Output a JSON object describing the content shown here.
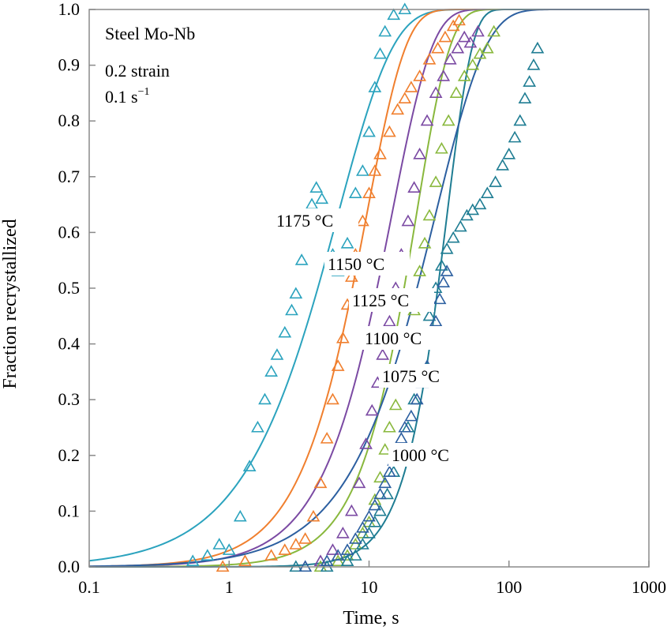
{
  "chart_data": {
    "type": "scatter",
    "title": "",
    "xlabel": "Time, s",
    "ylabel": "Fraction recrystallized",
    "xscale": "log",
    "xlim": [
      0.1,
      1000
    ],
    "ylim": [
      0.0,
      1.0
    ],
    "grid": false,
    "x_ticks": [
      0.1,
      1,
      10,
      100,
      1000
    ],
    "x_tick_labels": [
      "0.1",
      "1",
      "10",
      "100",
      "1000"
    ],
    "y_ticks": [
      0.0,
      0.1,
      0.2,
      0.3,
      0.4,
      0.5,
      0.6,
      0.7,
      0.8,
      0.9,
      1.0
    ],
    "y_tick_labels": [
      "0.0",
      "0.1",
      "0.2",
      "0.3",
      "0.4",
      "0.5",
      "0.6",
      "0.7",
      "0.8",
      "0.9",
      "1.0"
    ],
    "annotations": [
      "Steel Mo-Nb",
      "0.2 strain",
      "0.1 s"
    ],
    "annotation_superscript": "−1",
    "series": [
      {
        "name": "1175 °C",
        "color": "#2ba3be",
        "t50": 4.3,
        "n": 1.1,
        "points": [
          [
            0.55,
            0.01
          ],
          [
            0.7,
            0.02
          ],
          [
            0.85,
            0.04
          ],
          [
            1.0,
            0.03
          ],
          [
            1.2,
            0.09
          ],
          [
            1.4,
            0.18
          ],
          [
            1.6,
            0.25
          ],
          [
            1.8,
            0.3
          ],
          [
            2.0,
            0.35
          ],
          [
            2.2,
            0.38
          ],
          [
            2.5,
            0.42
          ],
          [
            2.8,
            0.46
          ],
          [
            3.0,
            0.49
          ],
          [
            3.3,
            0.55
          ],
          [
            3.6,
            0.61
          ],
          [
            3.9,
            0.65
          ],
          [
            4.2,
            0.68
          ],
          [
            4.6,
            0.66
          ],
          [
            5.0,
            0.61
          ],
          [
            5.5,
            0.56
          ],
          [
            6.0,
            0.53
          ],
          [
            7.0,
            0.58
          ],
          [
            8.0,
            0.67
          ],
          [
            9.0,
            0.71
          ],
          [
            10.0,
            0.78
          ],
          [
            11.0,
            0.86
          ],
          [
            12.0,
            0.92
          ],
          [
            13.0,
            0.96
          ],
          [
            15.0,
            0.99
          ],
          [
            18.0,
            1.0
          ]
        ]
      },
      {
        "name": "1150 °C",
        "color": "#f07f2e",
        "t50": 7.6,
        "n": 1.55,
        "points": [
          [
            0.9,
            0.0
          ],
          [
            1.3,
            0.01
          ],
          [
            2.0,
            0.02
          ],
          [
            2.5,
            0.03
          ],
          [
            3.0,
            0.04
          ],
          [
            3.5,
            0.05
          ],
          [
            4.0,
            0.09
          ],
          [
            4.5,
            0.15
          ],
          [
            5.0,
            0.23
          ],
          [
            5.5,
            0.3
          ],
          [
            6.0,
            0.36
          ],
          [
            6.5,
            0.41
          ],
          [
            7.0,
            0.47
          ],
          [
            7.5,
            0.52
          ],
          [
            8.0,
            0.56
          ],
          [
            9.0,
            0.62
          ],
          [
            10.0,
            0.67
          ],
          [
            11.0,
            0.71
          ],
          [
            12.0,
            0.74
          ],
          [
            14.0,
            0.78
          ],
          [
            16.0,
            0.82
          ],
          [
            18.0,
            0.84
          ],
          [
            20.0,
            0.86
          ],
          [
            23.0,
            0.88
          ],
          [
            27.0,
            0.91
          ],
          [
            31.0,
            0.93
          ],
          [
            35.0,
            0.95
          ],
          [
            40.0,
            0.97
          ],
          [
            44.0,
            0.98
          ]
        ]
      },
      {
        "name": "1125 °C",
        "color": "#7b4aa3",
        "t50": 11.4,
        "n": 1.5,
        "points": [
          [
            3.5,
            0.0
          ],
          [
            4.5,
            0.01
          ],
          [
            5.5,
            0.03
          ],
          [
            6.5,
            0.06
          ],
          [
            7.5,
            0.1
          ],
          [
            8.5,
            0.15
          ],
          [
            9.5,
            0.22
          ],
          [
            10.5,
            0.28
          ],
          [
            11.5,
            0.33
          ],
          [
            12.5,
            0.38
          ],
          [
            14.0,
            0.44
          ],
          [
            15.5,
            0.5
          ],
          [
            17.0,
            0.56
          ],
          [
            19.0,
            0.62
          ],
          [
            21.0,
            0.68
          ],
          [
            23.0,
            0.74
          ],
          [
            26.0,
            0.8
          ],
          [
            30.0,
            0.85
          ],
          [
            34.0,
            0.88
          ],
          [
            38.0,
            0.91
          ],
          [
            43.0,
            0.93
          ],
          [
            48.0,
            0.95
          ],
          [
            53.0,
            0.94
          ],
          [
            60.0,
            0.96
          ]
        ]
      },
      {
        "name": "1100 °C",
        "color": "#89b83d",
        "t50": 17.8,
        "n": 1.8,
        "points": [
          [
            4.5,
            0.0
          ],
          [
            6.0,
            0.01
          ],
          [
            7.0,
            0.02
          ],
          [
            8.0,
            0.04
          ],
          [
            9.0,
            0.06
          ],
          [
            10.0,
            0.08
          ],
          [
            11.0,
            0.12
          ],
          [
            12.0,
            0.16
          ],
          [
            13.0,
            0.21
          ],
          [
            14.0,
            0.25
          ],
          [
            15.5,
            0.29
          ],
          [
            17.0,
            0.34
          ],
          [
            19.0,
            0.4
          ],
          [
            21.0,
            0.46
          ],
          [
            23.0,
            0.53
          ],
          [
            25.0,
            0.58
          ],
          [
            27.0,
            0.63
          ],
          [
            30.0,
            0.69
          ],
          [
            33.0,
            0.75
          ],
          [
            37.0,
            0.8
          ],
          [
            42.0,
            0.85
          ],
          [
            48.0,
            0.88
          ],
          [
            55.0,
            0.9
          ],
          [
            62.0,
            0.92
          ],
          [
            70.0,
            0.93
          ],
          [
            78.0,
            0.96
          ]
        ]
      },
      {
        "name": "1075 °C",
        "color": "#1f7d93",
        "t50": 31.0,
        "n": 2.4,
        "points": [
          [
            3.0,
            0.0
          ],
          [
            5.0,
            0.0
          ],
          [
            7.0,
            0.01
          ],
          [
            8.0,
            0.02
          ],
          [
            9.0,
            0.04
          ],
          [
            10.0,
            0.06
          ],
          [
            11.0,
            0.08
          ],
          [
            12.0,
            0.1
          ],
          [
            13.5,
            0.13
          ],
          [
            15.0,
            0.17
          ],
          [
            17.0,
            0.21
          ],
          [
            19.0,
            0.25
          ],
          [
            21.0,
            0.3
          ],
          [
            23.0,
            0.35
          ],
          [
            25.0,
            0.4
          ],
          [
            27.0,
            0.45
          ],
          [
            30.0,
            0.5
          ],
          [
            33.0,
            0.54
          ],
          [
            36.0,
            0.57
          ],
          [
            40.0,
            0.59
          ],
          [
            45.0,
            0.61
          ],
          [
            50.0,
            0.63
          ],
          [
            55.0,
            0.64
          ],
          [
            62.0,
            0.65
          ],
          [
            70.0,
            0.67
          ],
          [
            80.0,
            0.69
          ],
          [
            90.0,
            0.72
          ],
          [
            100.0,
            0.74
          ],
          [
            110.0,
            0.77
          ],
          [
            120.0,
            0.8
          ],
          [
            130.0,
            0.84
          ],
          [
            140.0,
            0.87
          ],
          [
            150.0,
            0.9
          ],
          [
            160.0,
            0.93
          ]
        ]
      },
      {
        "name": "1000 °C",
        "color": "#2c5fa0",
        "t50": 22.0,
        "n": 1.2,
        "points": [
          [
            3.5,
            0.0
          ],
          [
            5.0,
            0.01
          ],
          [
            6.0,
            0.02
          ],
          [
            7.0,
            0.03
          ],
          [
            8.0,
            0.05
          ],
          [
            9.0,
            0.07
          ],
          [
            10.0,
            0.09
          ],
          [
            11.0,
            0.11
          ],
          [
            12.0,
            0.13
          ],
          [
            13.0,
            0.15
          ],
          [
            14.0,
            0.17
          ],
          [
            15.0,
            0.19
          ],
          [
            16.0,
            0.21
          ],
          [
            17.0,
            0.23
          ],
          [
            18.0,
            0.25
          ],
          [
            20.0,
            0.27
          ],
          [
            22.0,
            0.3
          ],
          [
            24.0,
            0.33
          ],
          [
            26.0,
            0.36
          ],
          [
            28.0,
            0.4
          ],
          [
            30.0,
            0.44
          ],
          [
            32.0,
            0.48
          ],
          [
            34.0,
            0.51
          ],
          [
            36.0,
            0.53
          ]
        ]
      }
    ]
  }
}
